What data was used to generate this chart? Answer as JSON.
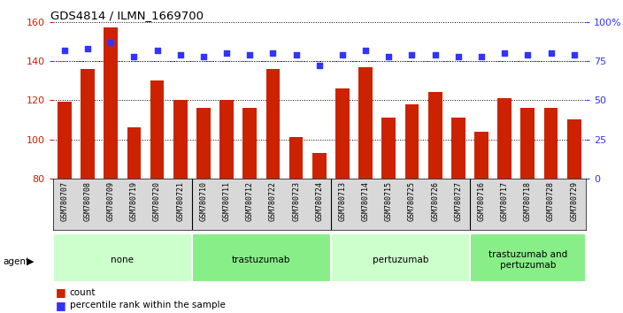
{
  "title": "GDS4814 / ILMN_1669700",
  "samples": [
    "GSM780707",
    "GSM780708",
    "GSM780709",
    "GSM780719",
    "GSM780720",
    "GSM780721",
    "GSM780710",
    "GSM780711",
    "GSM780712",
    "GSM780722",
    "GSM780723",
    "GSM780724",
    "GSM780713",
    "GSM780714",
    "GSM780715",
    "GSM780725",
    "GSM780726",
    "GSM780727",
    "GSM780716",
    "GSM780717",
    "GSM780718",
    "GSM780728",
    "GSM780729"
  ],
  "counts": [
    119,
    136,
    157,
    106,
    130,
    120,
    116,
    120,
    116,
    136,
    101,
    93,
    126,
    137,
    111,
    118,
    124,
    111,
    104,
    121,
    116,
    116,
    110
  ],
  "percentiles": [
    82,
    83,
    87,
    78,
    82,
    79,
    78,
    80,
    79,
    80,
    79,
    72,
    79,
    82,
    78,
    79,
    79,
    78,
    78,
    80,
    79,
    80,
    79
  ],
  "groups": [
    {
      "label": "none",
      "start": 0,
      "end": 6,
      "color": "#ccffcc"
    },
    {
      "label": "trastuzumab",
      "start": 6,
      "end": 12,
      "color": "#88ee88"
    },
    {
      "label": "pertuzumab",
      "start": 12,
      "end": 18,
      "color": "#ccffcc"
    },
    {
      "label": "trastuzumab and\npertuzumab",
      "start": 18,
      "end": 23,
      "color": "#88ee88"
    }
  ],
  "bar_color": "#cc2200",
  "dot_color": "#3333ff",
  "ylim_left": [
    80,
    160
  ],
  "ylim_right": [
    0,
    100
  ],
  "yticks_left": [
    80,
    100,
    120,
    140,
    160
  ],
  "yticks_right": [
    0,
    25,
    50,
    75,
    100
  ],
  "ytick_labels_right": [
    "0",
    "25",
    "50",
    "75",
    "100%"
  ]
}
